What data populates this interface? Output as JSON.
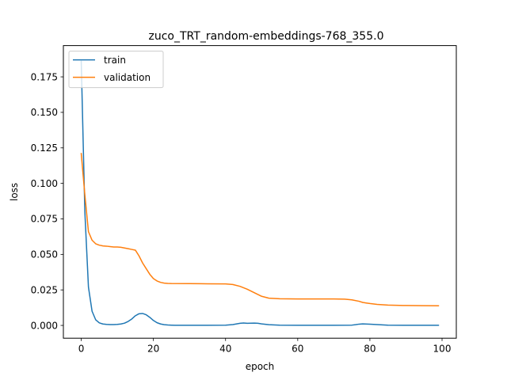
{
  "chart_data": {
    "type": "line",
    "title": "zuco_TRT_random-embeddings-768_355.0",
    "xlabel": "epoch",
    "ylabel": "loss",
    "xlim": [
      -4.95,
      103.95
    ],
    "ylim": [
      -0.009,
      0.197
    ],
    "xticks": [
      0,
      20,
      40,
      60,
      80,
      100
    ],
    "xtick_labels": [
      "0",
      "20",
      "40",
      "60",
      "80",
      "100"
    ],
    "yticks": [
      0.0,
      0.025,
      0.05,
      0.075,
      0.1,
      0.125,
      0.15,
      0.175
    ],
    "ytick_labels": [
      "0.000",
      "0.025",
      "0.050",
      "0.075",
      "0.100",
      "0.125",
      "0.150",
      "0.175"
    ],
    "grid": false,
    "legend_position": "top-left",
    "series": [
      {
        "name": "train",
        "color": "#1f77b4",
        "x": [
          0,
          1,
          2,
          3,
          4,
          5,
          6,
          7,
          8,
          9,
          10,
          11,
          12,
          13,
          14,
          15,
          16,
          17,
          18,
          19,
          20,
          21,
          22,
          23,
          24,
          25,
          26,
          28,
          30,
          35,
          40,
          42,
          44,
          45,
          46,
          48,
          49,
          50,
          52,
          55,
          60,
          65,
          70,
          75,
          76,
          77,
          78,
          80,
          82,
          85,
          90,
          95,
          99
        ],
        "y": [
          0.186,
          0.08,
          0.027,
          0.01,
          0.004,
          0.0018,
          0.001,
          0.0007,
          0.0006,
          0.0006,
          0.0007,
          0.001,
          0.0016,
          0.0028,
          0.0045,
          0.0068,
          0.0082,
          0.0084,
          0.0075,
          0.0057,
          0.0035,
          0.0019,
          0.001,
          0.0005,
          0.0003,
          0.0002,
          0.0001,
          0.0001,
          0.0001,
          0.0001,
          0.0002,
          0.0006,
          0.0015,
          0.0017,
          0.0015,
          0.0016,
          0.0015,
          0.0011,
          0.0005,
          0.0002,
          0.0001,
          0.0001,
          0.0001,
          0.0002,
          0.0005,
          0.0009,
          0.0011,
          0.0009,
          0.0006,
          0.0002,
          0.0001,
          0.0001,
          0.0001
        ]
      },
      {
        "name": "validation",
        "color": "#ff7f0e",
        "x": [
          0,
          1,
          2,
          3,
          4,
          5,
          6,
          7,
          8,
          9,
          10,
          11,
          12,
          13,
          14,
          15,
          16,
          17,
          18,
          19,
          20,
          21,
          22,
          23,
          24,
          25,
          30,
          35,
          40,
          42,
          44,
          46,
          48,
          50,
          52,
          55,
          60,
          65,
          70,
          73,
          75,
          77,
          78,
          79,
          80,
          82,
          85,
          90,
          95,
          99
        ],
        "y": [
          0.121,
          0.092,
          0.066,
          0.06,
          0.0575,
          0.0565,
          0.056,
          0.0558,
          0.0555,
          0.0552,
          0.0552,
          0.055,
          0.0545,
          0.054,
          0.0535,
          0.053,
          0.049,
          0.044,
          0.04,
          0.036,
          0.033,
          0.0313,
          0.0303,
          0.0298,
          0.0296,
          0.0295,
          0.0294,
          0.0293,
          0.0292,
          0.0288,
          0.0275,
          0.0255,
          0.023,
          0.0205,
          0.0192,
          0.0188,
          0.0186,
          0.0186,
          0.0186,
          0.0185,
          0.018,
          0.017,
          0.0162,
          0.0158,
          0.0154,
          0.0148,
          0.0143,
          0.014,
          0.0139,
          0.0138
        ]
      }
    ]
  }
}
